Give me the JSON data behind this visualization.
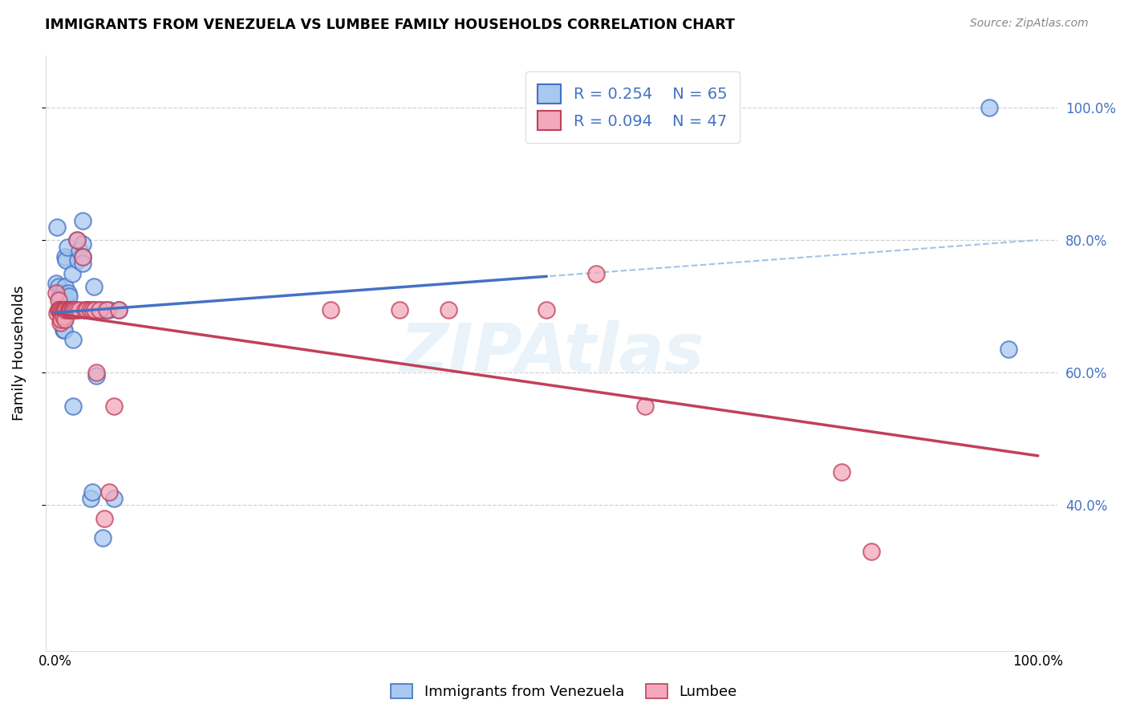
{
  "title": "IMMIGRANTS FROM VENEZUELA VS LUMBEE FAMILY HOUSEHOLDS CORRELATION CHART",
  "source": "Source: ZipAtlas.com",
  "ylabel": "Family Households",
  "legend_label1": "Immigrants from Venezuela",
  "legend_label2": "Lumbee",
  "R1": "0.254",
  "N1": "65",
  "R2": "0.094",
  "N2": "47",
  "color_blue": "#A8C8F0",
  "color_pink": "#F4A8BC",
  "trendline_blue": "#4472C4",
  "trendline_pink": "#C0405A",
  "trendline_dashed": "#A0C4E8",
  "background": "#ffffff",
  "ytick_vals": [
    0.4,
    0.6,
    0.8,
    1.0
  ],
  "blue_x": [
    0.001,
    0.002,
    0.003,
    0.003,
    0.004,
    0.004,
    0.005,
    0.005,
    0.005,
    0.006,
    0.006,
    0.006,
    0.007,
    0.007,
    0.007,
    0.007,
    0.008,
    0.008,
    0.008,
    0.008,
    0.008,
    0.009,
    0.009,
    0.009,
    0.009,
    0.01,
    0.01,
    0.01,
    0.01,
    0.011,
    0.011,
    0.012,
    0.012,
    0.013,
    0.013,
    0.014,
    0.015,
    0.016,
    0.017,
    0.018,
    0.018,
    0.02,
    0.022,
    0.023,
    0.025,
    0.028,
    0.028,
    0.028,
    0.028,
    0.03,
    0.032,
    0.035,
    0.036,
    0.038,
    0.039,
    0.04,
    0.042,
    0.045,
    0.048,
    0.05,
    0.055,
    0.06,
    0.065,
    0.97,
    0.95
  ],
  "blue_y": [
    0.735,
    0.82,
    0.73,
    0.695,
    0.715,
    0.695,
    0.72,
    0.715,
    0.695,
    0.71,
    0.695,
    0.68,
    0.715,
    0.695,
    0.685,
    0.675,
    0.72,
    0.705,
    0.695,
    0.68,
    0.665,
    0.715,
    0.695,
    0.68,
    0.665,
    0.775,
    0.73,
    0.695,
    0.685,
    0.705,
    0.77,
    0.79,
    0.695,
    0.72,
    0.695,
    0.715,
    0.695,
    0.695,
    0.75,
    0.65,
    0.55,
    0.695,
    0.8,
    0.77,
    0.785,
    0.83,
    0.795,
    0.775,
    0.765,
    0.695,
    0.695,
    0.695,
    0.41,
    0.42,
    0.73,
    0.695,
    0.595,
    0.695,
    0.35,
    0.695,
    0.695,
    0.41,
    0.695,
    0.635,
    1.0
  ],
  "pink_x": [
    0.001,
    0.002,
    0.003,
    0.003,
    0.004,
    0.005,
    0.005,
    0.006,
    0.006,
    0.007,
    0.008,
    0.008,
    0.009,
    0.01,
    0.01,
    0.011,
    0.013,
    0.014,
    0.015,
    0.016,
    0.017,
    0.018,
    0.02,
    0.022,
    0.022,
    0.025,
    0.028,
    0.03,
    0.032,
    0.035,
    0.038,
    0.04,
    0.042,
    0.045,
    0.05,
    0.052,
    0.055,
    0.06,
    0.065,
    0.28,
    0.35,
    0.4,
    0.5,
    0.55,
    0.6,
    0.8,
    0.83
  ],
  "pink_y": [
    0.72,
    0.69,
    0.71,
    0.695,
    0.695,
    0.675,
    0.695,
    0.69,
    0.68,
    0.695,
    0.695,
    0.685,
    0.695,
    0.695,
    0.68,
    0.695,
    0.695,
    0.695,
    0.695,
    0.695,
    0.695,
    0.695,
    0.695,
    0.8,
    0.695,
    0.695,
    0.775,
    0.695,
    0.695,
    0.695,
    0.695,
    0.695,
    0.6,
    0.695,
    0.38,
    0.695,
    0.42,
    0.55,
    0.695,
    0.695,
    0.695,
    0.695,
    0.695,
    0.75,
    0.55,
    0.45,
    0.33
  ]
}
